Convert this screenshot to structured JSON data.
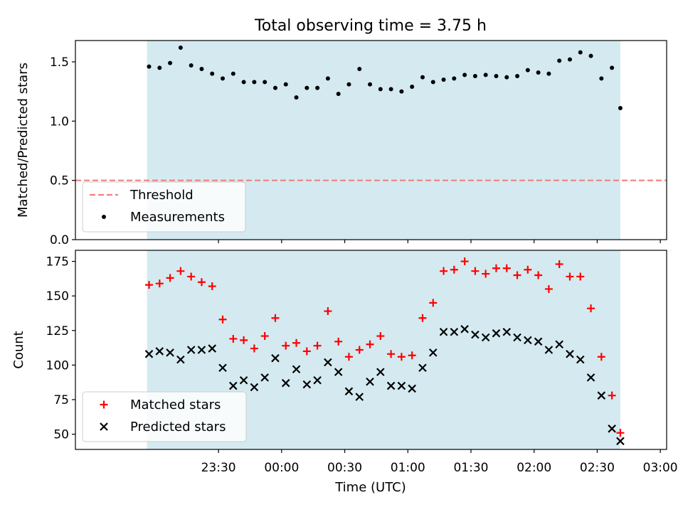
{
  "title": "Total observing time = 3.75 h",
  "xlabel": "Time (UTC)",
  "x_tick_labels": [
    "23:30",
    "00:00",
    "00:30",
    "01:00",
    "01:30",
    "02:00",
    "02:30",
    "03:00"
  ],
  "colors": {
    "shade": "#d4eaf0",
    "threshold": "#f08080",
    "measurements": "#000000",
    "matched": "#ff0000",
    "predicted": "#000000"
  },
  "chart_data": [
    {
      "type": "scatter",
      "ylabel": "Matched/Predicted stars",
      "ylim": [
        0,
        1.68
      ],
      "yticks": [
        0.0,
        0.5,
        1.0,
        1.5
      ],
      "ytick_labels": [
        "0.0",
        "0.5",
        "1.0",
        "1.5"
      ],
      "xlim_minutes": [
        -68,
        213
      ],
      "shaded_span_minutes": [
        -34,
        191
      ],
      "legend_position": "lower-left",
      "threshold": {
        "name": "Threshold",
        "value": 0.5
      },
      "series": [
        {
          "name": "Measurements",
          "x_minutes": [
            -33,
            -28,
            -23,
            -18,
            -13,
            -8,
            -3,
            2,
            7,
            12,
            17,
            22,
            27,
            32,
            37,
            42,
            47,
            52,
            57,
            62,
            67,
            72,
            77,
            82,
            87,
            92,
            97,
            102,
            107,
            112,
            117,
            122,
            127,
            132,
            137,
            142,
            147,
            152,
            157,
            162,
            167,
            172,
            177,
            182,
            187,
            191
          ],
          "values": [
            1.46,
            1.45,
            1.49,
            1.62,
            1.47,
            1.44,
            1.4,
            1.36,
            1.4,
            1.33,
            1.33,
            1.33,
            1.28,
            1.31,
            1.2,
            1.28,
            1.28,
            1.36,
            1.23,
            1.31,
            1.44,
            1.31,
            1.27,
            1.27,
            1.25,
            1.29,
            1.37,
            1.33,
            1.35,
            1.36,
            1.39,
            1.38,
            1.39,
            1.38,
            1.37,
            1.38,
            1.43,
            1.41,
            1.4,
            1.51,
            1.52,
            1.58,
            1.55,
            1.36,
            1.45,
            1.11
          ]
        }
      ]
    },
    {
      "type": "scatter",
      "ylabel": "Count",
      "ylim": [
        39,
        183
      ],
      "yticks": [
        50,
        75,
        100,
        125,
        150,
        175
      ],
      "ytick_labels": [
        "50",
        "75",
        "100",
        "125",
        "150",
        "175"
      ],
      "xlim_minutes": [
        -68,
        213
      ],
      "shaded_span_minutes": [
        -34,
        191
      ],
      "legend_position": "lower-left",
      "series": [
        {
          "name": "Matched stars",
          "marker": "plus",
          "x_minutes": [
            -33,
            -28,
            -23,
            -18,
            -13,
            -8,
            -3,
            2,
            7,
            12,
            17,
            22,
            27,
            32,
            37,
            42,
            47,
            52,
            57,
            62,
            67,
            72,
            77,
            82,
            87,
            92,
            97,
            102,
            107,
            112,
            117,
            122,
            127,
            132,
            137,
            142,
            147,
            152,
            157,
            162,
            167,
            172,
            177,
            182,
            187,
            191
          ],
          "values": [
            158,
            159,
            163,
            168,
            164,
            160,
            157,
            133,
            119,
            118,
            112,
            121,
            134,
            114,
            116,
            110,
            114,
            139,
            117,
            106,
            111,
            115,
            121,
            108,
            106,
            107,
            134,
            145,
            168,
            169,
            175,
            168,
            166,
            170,
            170,
            165,
            169,
            165,
            155,
            173,
            164,
            164,
            141,
            106,
            78,
            51
          ]
        },
        {
          "name": "Predicted stars",
          "marker": "x",
          "x_minutes": [
            -33,
            -28,
            -23,
            -18,
            -13,
            -8,
            -3,
            2,
            7,
            12,
            17,
            22,
            27,
            32,
            37,
            42,
            47,
            52,
            57,
            62,
            67,
            72,
            77,
            82,
            87,
            92,
            97,
            102,
            107,
            112,
            117,
            122,
            127,
            132,
            137,
            142,
            147,
            152,
            157,
            162,
            167,
            172,
            177,
            182,
            187,
            191
          ],
          "values": [
            108,
            110,
            109,
            104,
            111,
            111,
            112,
            98,
            85,
            89,
            84,
            91,
            105,
            87,
            97,
            86,
            89,
            102,
            95,
            81,
            77,
            88,
            95,
            85,
            85,
            83,
            98,
            109,
            124,
            124,
            126,
            122,
            120,
            123,
            124,
            120,
            118,
            117,
            111,
            115,
            108,
            104,
            91,
            78,
            54,
            45
          ]
        }
      ]
    }
  ]
}
